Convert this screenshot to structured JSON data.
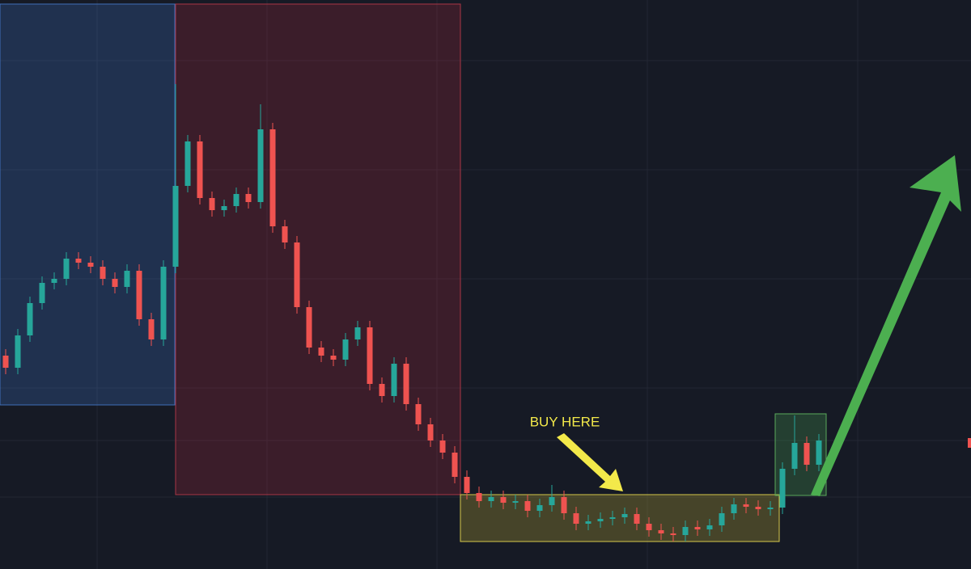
{
  "chart_data": {
    "type": "candlestick",
    "annotation": "BUY HERE",
    "up_color": "#26a69a",
    "down_color": "#ef5350",
    "ylim": [
      0,
      704
    ],
    "open": [
      264,
      249,
      289,
      329,
      354,
      359,
      384,
      379,
      374,
      359,
      349,
      369,
      309,
      284,
      374,
      474,
      529,
      459,
      444,
      449,
      464,
      454,
      544,
      424,
      404,
      324,
      274,
      264,
      259,
      284,
      299,
      229,
      214,
      254,
      204,
      179,
      159,
      144,
      114,
      94,
      84,
      89,
      82,
      84,
      72,
      79,
      89,
      69,
      56,
      59,
      62,
      64,
      68,
      56,
      48,
      44,
      42,
      52,
      49,
      54,
      69,
      80,
      77,
      74,
      76,
      124,
      156,
      129
    ],
    "high": [
      272,
      297,
      337,
      362,
      367,
      392,
      392,
      387,
      382,
      367,
      377,
      377,
      317,
      382,
      600,
      537,
      537,
      467,
      457,
      472,
      472,
      575,
      552,
      432,
      412,
      332,
      282,
      272,
      292,
      307,
      307,
      237,
      262,
      262,
      212,
      187,
      167,
      152,
      122,
      102,
      97,
      97,
      92,
      92,
      87,
      104,
      97,
      77,
      67,
      70,
      72,
      76,
      76,
      64,
      56,
      52,
      60,
      60,
      62,
      77,
      88,
      88,
      85,
      84,
      132,
      190,
      164,
      167
    ],
    "low": [
      241,
      241,
      281,
      321,
      346,
      351,
      371,
      366,
      351,
      341,
      341,
      301,
      276,
      276,
      366,
      466,
      451,
      436,
      436,
      441,
      446,
      446,
      416,
      396,
      316,
      266,
      256,
      251,
      251,
      276,
      221,
      206,
      206,
      196,
      171,
      151,
      136,
      106,
      86,
      76,
      76,
      74,
      74,
      64,
      64,
      71,
      61,
      48,
      48,
      51,
      54,
      56,
      48,
      40,
      36,
      34,
      34,
      41,
      41,
      46,
      61,
      69,
      66,
      66,
      68,
      116,
      121,
      121
    ],
    "close": [
      249,
      289,
      329,
      354,
      359,
      384,
      379,
      374,
      359,
      349,
      369,
      309,
      284,
      374,
      474,
      529,
      459,
      444,
      449,
      464,
      454,
      544,
      424,
      404,
      324,
      274,
      264,
      259,
      284,
      299,
      229,
      214,
      254,
      204,
      179,
      159,
      144,
      114,
      94,
      84,
      89,
      82,
      84,
      72,
      79,
      89,
      69,
      56,
      59,
      62,
      64,
      68,
      56,
      48,
      44,
      42,
      52,
      49,
      54,
      69,
      80,
      77,
      74,
      76,
      124,
      156,
      129,
      159
    ]
  }
}
